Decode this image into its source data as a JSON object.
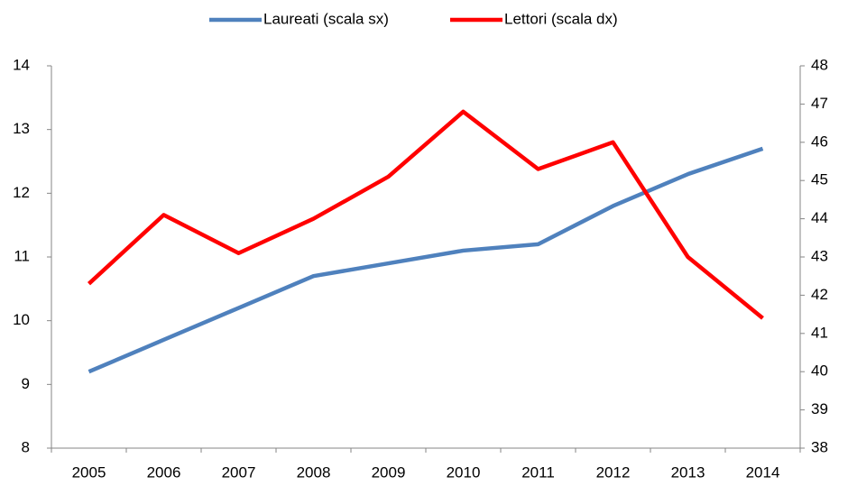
{
  "chart_data": {
    "type": "line",
    "categories": [
      "2005",
      "2006",
      "2007",
      "2008",
      "2009",
      "2010",
      "2011",
      "2012",
      "2013",
      "2014"
    ],
    "series": [
      {
        "name": "Laureati (scala sx)",
        "color": "#4f81bd",
        "values": [
          9.2,
          9.7,
          10.2,
          10.7,
          10.9,
          11.1,
          11.2,
          11.8,
          12.3,
          12.7
        ]
      },
      {
        "name": "Lettori (scala dx)",
        "color": "#ff0000",
        "axis": "y2",
        "values": [
          42.3,
          44.1,
          43.1,
          44.0,
          45.1,
          46.8,
          45.3,
          46.0,
          43.0,
          41.4
        ]
      }
    ],
    "ylim": [
      8,
      14
    ],
    "yticks": [
      8,
      9,
      10,
      11,
      12,
      13,
      14
    ],
    "y2lim": [
      38,
      48
    ],
    "y2ticks": [
      38,
      39,
      40,
      41,
      42,
      43,
      44,
      45,
      46,
      47,
      48
    ],
    "grid": false,
    "legend": "top"
  }
}
